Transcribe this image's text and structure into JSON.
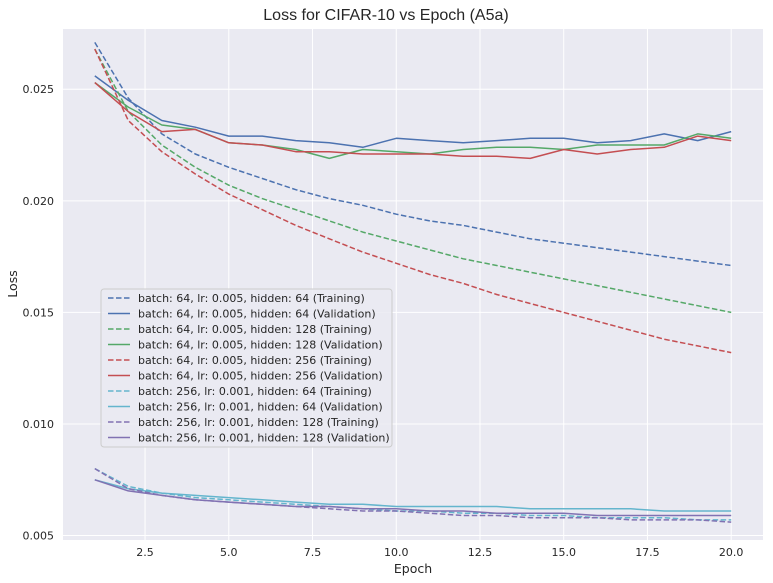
{
  "chart_data": {
    "type": "line",
    "title": "Loss for CIFAR-10 vs Epoch (A5a)",
    "xlabel": "Epoch",
    "ylabel": "Loss",
    "xlim": [
      0.05,
      20.95
    ],
    "ylim": [
      0.0048,
      0.0277
    ],
    "xticks": [
      2.5,
      5.0,
      7.5,
      10.0,
      12.5,
      15.0,
      17.5,
      20.0
    ],
    "xtick_labels": [
      "2.5",
      "5.0",
      "7.5",
      "10.0",
      "12.5",
      "15.0",
      "17.5",
      "20.0"
    ],
    "yticks": [
      0.005,
      0.01,
      0.015,
      0.02,
      0.025
    ],
    "ytick_labels": [
      "0.005",
      "0.010",
      "0.015",
      "0.020",
      "0.025"
    ],
    "grid": true,
    "legend_position": "center-left",
    "x": [
      1,
      2,
      3,
      4,
      5,
      6,
      7,
      8,
      9,
      10,
      11,
      12,
      13,
      14,
      15,
      16,
      17,
      18,
      19,
      20
    ],
    "series": [
      {
        "name": "batch: 64, lr: 0.005, hidden: 64 (Training)",
        "color": "#4c72b0",
        "dashed": true,
        "values": [
          0.0271,
          0.0246,
          0.023,
          0.0221,
          0.0215,
          0.021,
          0.0205,
          0.0201,
          0.0198,
          0.0194,
          0.0191,
          0.0189,
          0.0186,
          0.0183,
          0.0181,
          0.0179,
          0.0177,
          0.0175,
          0.0173,
          0.0171
        ]
      },
      {
        "name": "batch: 64, lr: 0.005, hidden: 64 (Validation)",
        "color": "#4c72b0",
        "dashed": false,
        "values": [
          0.0256,
          0.0245,
          0.0236,
          0.0233,
          0.0229,
          0.0229,
          0.0227,
          0.0226,
          0.0224,
          0.0228,
          0.0227,
          0.0226,
          0.0227,
          0.0228,
          0.0228,
          0.0226,
          0.0227,
          0.023,
          0.0227,
          0.0231
        ]
      },
      {
        "name": "batch: 64, lr: 0.005, hidden: 128 (Training)",
        "color": "#55a868",
        "dashed": true,
        "values": [
          0.0268,
          0.024,
          0.0225,
          0.0215,
          0.0207,
          0.0201,
          0.0196,
          0.0191,
          0.0186,
          0.0182,
          0.0178,
          0.0174,
          0.0171,
          0.0168,
          0.0165,
          0.0162,
          0.0159,
          0.0156,
          0.0153,
          0.015
        ]
      },
      {
        "name": "batch: 64, lr: 0.005, hidden: 128 (Validation)",
        "color": "#55a868",
        "dashed": false,
        "values": [
          0.0253,
          0.0242,
          0.0234,
          0.0232,
          0.0226,
          0.0225,
          0.0223,
          0.0219,
          0.0223,
          0.0222,
          0.0221,
          0.0223,
          0.0224,
          0.0224,
          0.0223,
          0.0225,
          0.0225,
          0.0225,
          0.023,
          0.0228
        ]
      },
      {
        "name": "batch: 64, lr: 0.005, hidden: 256 (Training)",
        "color": "#c44e52",
        "dashed": true,
        "values": [
          0.0268,
          0.0236,
          0.0222,
          0.0212,
          0.0203,
          0.0196,
          0.0189,
          0.0183,
          0.0177,
          0.0172,
          0.0167,
          0.0163,
          0.0158,
          0.0154,
          0.015,
          0.0146,
          0.0142,
          0.0138,
          0.0135,
          0.0132
        ]
      },
      {
        "name": "batch: 64, lr: 0.005, hidden: 256 (Validation)",
        "color": "#c44e52",
        "dashed": false,
        "values": [
          0.0253,
          0.024,
          0.0231,
          0.0232,
          0.0226,
          0.0225,
          0.0222,
          0.0222,
          0.0221,
          0.0221,
          0.0221,
          0.022,
          0.022,
          0.0219,
          0.0223,
          0.0221,
          0.0223,
          0.0224,
          0.0229,
          0.0227
        ]
      },
      {
        "name": "batch: 256, lr: 0.001, hidden: 64 (Training)",
        "color": "#64b5cd",
        "dashed": true,
        "values": [
          0.008,
          0.0072,
          0.0069,
          0.0067,
          0.0066,
          0.0065,
          0.0064,
          0.0063,
          0.0062,
          0.0061,
          0.0061,
          0.006,
          0.006,
          0.0059,
          0.0059,
          0.0058,
          0.0058,
          0.0058,
          0.0057,
          0.0057
        ]
      },
      {
        "name": "batch: 256, lr: 0.001, hidden: 64 (Validation)",
        "color": "#64b5cd",
        "dashed": false,
        "values": [
          0.0075,
          0.0071,
          0.0069,
          0.0068,
          0.0067,
          0.0066,
          0.0065,
          0.0064,
          0.0064,
          0.0063,
          0.0063,
          0.0063,
          0.0063,
          0.0062,
          0.0062,
          0.0062,
          0.0062,
          0.0061,
          0.0061,
          0.0061
        ]
      },
      {
        "name": "batch: 256, lr: 0.001, hidden: 128 (Training)",
        "color": "#8172b2",
        "dashed": true,
        "values": [
          0.008,
          0.0071,
          0.0068,
          0.0066,
          0.0065,
          0.0064,
          0.0063,
          0.0062,
          0.0061,
          0.0061,
          0.006,
          0.0059,
          0.0059,
          0.0058,
          0.0058,
          0.0058,
          0.0057,
          0.0057,
          0.0057,
          0.0056
        ]
      },
      {
        "name": "batch: 256, lr: 0.001, hidden: 128 (Validation)",
        "color": "#8172b2",
        "dashed": false,
        "values": [
          0.0075,
          0.007,
          0.0068,
          0.0066,
          0.0065,
          0.0064,
          0.0063,
          0.0063,
          0.0062,
          0.0062,
          0.0061,
          0.0061,
          0.006,
          0.006,
          0.006,
          0.0059,
          0.0059,
          0.0059,
          0.0059,
          0.0059
        ]
      }
    ]
  }
}
